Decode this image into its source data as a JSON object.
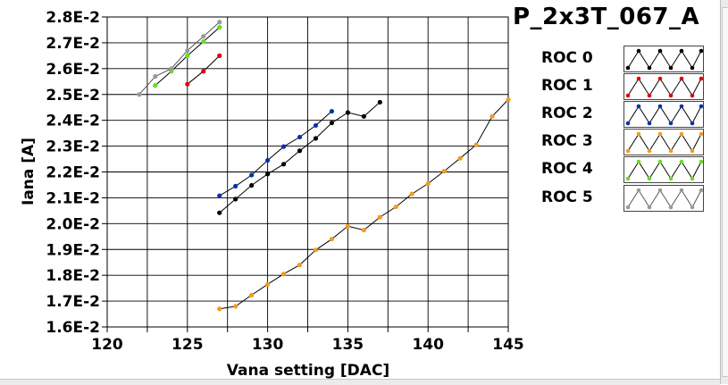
{
  "title": "P_2x3T_067_A",
  "chart_data": {
    "type": "line",
    "xlabel": "Vana setting [DAC]",
    "ylabel": "Iana [A]",
    "xlim": [
      120,
      145
    ],
    "ylim": [
      0.016,
      0.028
    ],
    "grid": true,
    "legend_position": "right",
    "x_ticks": [
      "120",
      "125",
      "130",
      "135",
      "140",
      "145"
    ],
    "y_ticks": [
      "1.6E-2",
      "1.7E-2",
      "1.8E-2",
      "1.9E-2",
      "2.0E-2",
      "2.1E-2",
      "2.2E-2",
      "2.3E-2",
      "2.4E-2",
      "2.5E-2",
      "2.6E-2",
      "2.7E-2",
      "2.8E-2"
    ],
    "series": [
      {
        "name": "ROC 0",
        "color": "#000000",
        "x": [
          127,
          128,
          129,
          130,
          131,
          132,
          133,
          134,
          135,
          136,
          137
        ],
        "y": [
          0.02042,
          0.02095,
          0.02148,
          0.02192,
          0.0223,
          0.02282,
          0.0233,
          0.0239,
          0.0243,
          0.02415,
          0.0247
        ]
      },
      {
        "name": "ROC 1",
        "color": "#e00000",
        "x": [
          125,
          126,
          127
        ],
        "y": [
          0.0254,
          0.0259,
          0.0265
        ]
      },
      {
        "name": "ROC 2",
        "color": "#0033aa",
        "x": [
          127,
          128,
          129,
          130,
          131,
          132,
          133,
          134
        ],
        "y": [
          0.02108,
          0.02145,
          0.02188,
          0.02245,
          0.02298,
          0.02335,
          0.0238,
          0.02435
        ]
      },
      {
        "name": "ROC 3",
        "color": "#f59a1c",
        "x": [
          127,
          128,
          129,
          130,
          131,
          132,
          133,
          134,
          135,
          136,
          137,
          138,
          139,
          140,
          141,
          142,
          143,
          144,
          145
        ],
        "y": [
          0.0167,
          0.0168,
          0.01723,
          0.01765,
          0.01805,
          0.0184,
          0.01898,
          0.0194,
          0.0199,
          0.01975,
          0.02025,
          0.02065,
          0.02115,
          0.02155,
          0.02203,
          0.02253,
          0.02305,
          0.02415,
          0.0248
        ]
      },
      {
        "name": "ROC 4",
        "color": "#66dd22",
        "x": [
          123,
          124,
          125,
          126,
          127
        ],
        "y": [
          0.02535,
          0.0259,
          0.0265,
          0.02705,
          0.0276
        ]
      },
      {
        "name": "ROC 5",
        "color": "#999999",
        "x": [
          122,
          123,
          124,
          125,
          126,
          127
        ],
        "y": [
          0.025,
          0.0257,
          0.026,
          0.0267,
          0.02725,
          0.0278
        ]
      }
    ]
  }
}
